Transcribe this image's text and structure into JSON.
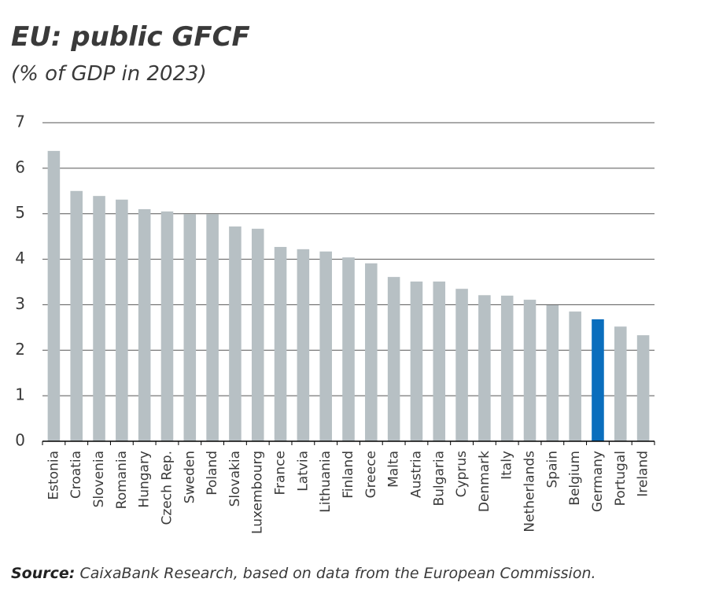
{
  "chart_data": {
    "type": "bar",
    "title": "EU: public GFCF",
    "subtitle": "(% of GDP in 2023)",
    "categories": [
      "Estonia",
      "Croatia",
      "Slovenia",
      "Romania",
      "Hungary",
      "Czech Rep.",
      "Sweden",
      "Poland",
      "Slovakia",
      "Luxembourg",
      "France",
      "Latvia",
      "Lithuania",
      "Finland",
      "Greece",
      "Malta",
      "Austria",
      "Bulgaria",
      "Cyprus",
      "Denmark",
      "Italy",
      "Netherlands",
      "Spain",
      "Belgium",
      "Germany",
      "Portugal",
      "Ireland"
    ],
    "values": [
      6.38,
      5.5,
      5.39,
      5.31,
      5.1,
      5.05,
      4.99,
      4.99,
      4.72,
      4.67,
      4.27,
      4.22,
      4.17,
      4.04,
      3.91,
      3.61,
      3.51,
      3.51,
      3.35,
      3.21,
      3.2,
      3.11,
      2.99,
      2.85,
      2.68,
      2.52,
      2.33
    ],
    "colors": [
      "#b7c0c4",
      "#b7c0c4",
      "#b7c0c4",
      "#b7c0c4",
      "#b7c0c4",
      "#b7c0c4",
      "#b7c0c4",
      "#b7c0c4",
      "#b7c0c4",
      "#b7c0c4",
      "#b7c0c4",
      "#b7c0c4",
      "#b7c0c4",
      "#b7c0c4",
      "#b7c0c4",
      "#b7c0c4",
      "#b7c0c4",
      "#b7c0c4",
      "#b7c0c4",
      "#b7c0c4",
      "#b7c0c4",
      "#b7c0c4",
      "#b7c0c4",
      "#b7c0c4",
      "#0a6ebd",
      "#b7c0c4",
      "#b7c0c4"
    ],
    "ylim": [
      0,
      7
    ],
    "yticks": [
      0,
      1,
      2,
      3,
      4,
      5,
      6,
      7
    ],
    "grid": true,
    "source_label": "Source:",
    "source": "CaixaBank Research, based on data from the European Commission."
  }
}
